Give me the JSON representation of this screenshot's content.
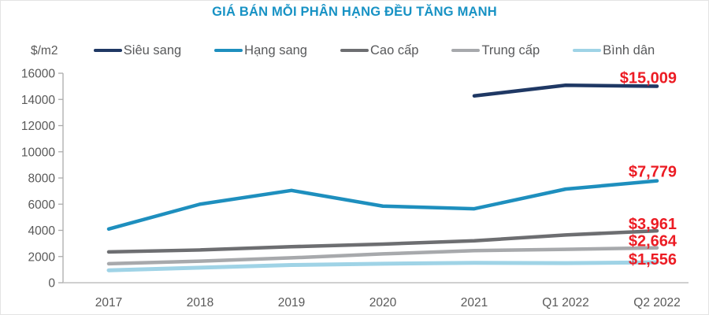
{
  "title": "GIÁ BÁN MỖI PHÂN HẠNG ĐỀU TĂNG MẠNH",
  "colors": {
    "title_text": "#1792C4",
    "legend_text": "#58595B",
    "axis_text": "#595959",
    "y_axis_line": "#ABABAB",
    "x_axis_line": "#C0C0C0",
    "data_label_red": "#EC1C24"
  },
  "chart_data": {
    "type": "line",
    "title": "GIÁ BÁN MỖI PHÂN HẠNG ĐỀU TĂNG MẠNH",
    "xlabel": "",
    "ylabel": "$/m2",
    "ylim": [
      0,
      16000
    ],
    "y_ticks": [
      0,
      2000,
      4000,
      6000,
      8000,
      10000,
      12000,
      14000,
      16000
    ],
    "grid": false,
    "legend_position": "top",
    "categories": [
      "2017",
      "2018",
      "2019",
      "2020",
      "2021",
      "Q1 2022",
      "Q2 2022"
    ],
    "series": [
      {
        "name": "Siêu sang",
        "color": "#1F3864",
        "values": [
          null,
          null,
          null,
          null,
          14270,
          15080,
          15009
        ],
        "end_label": "$15,009"
      },
      {
        "name": "Hạng sang",
        "color": "#1E8FBE",
        "values": [
          4100,
          6000,
          7050,
          5850,
          5650,
          7150,
          7779
        ],
        "end_label": "$7,779"
      },
      {
        "name": "Cao cấp",
        "color": "#6D6E71",
        "values": [
          2350,
          2500,
          2750,
          2950,
          3200,
          3650,
          3961
        ],
        "end_label": "$3,961"
      },
      {
        "name": "Trung cấp",
        "color": "#A7A9AC",
        "values": [
          1450,
          1650,
          1900,
          2200,
          2450,
          2550,
          2664
        ],
        "end_label": "$2,664"
      },
      {
        "name": "Bình dân",
        "color": "#9FD3E6",
        "values": [
          950,
          1150,
          1350,
          1450,
          1520,
          1500,
          1556
        ],
        "end_label": "$1,556"
      }
    ]
  }
}
